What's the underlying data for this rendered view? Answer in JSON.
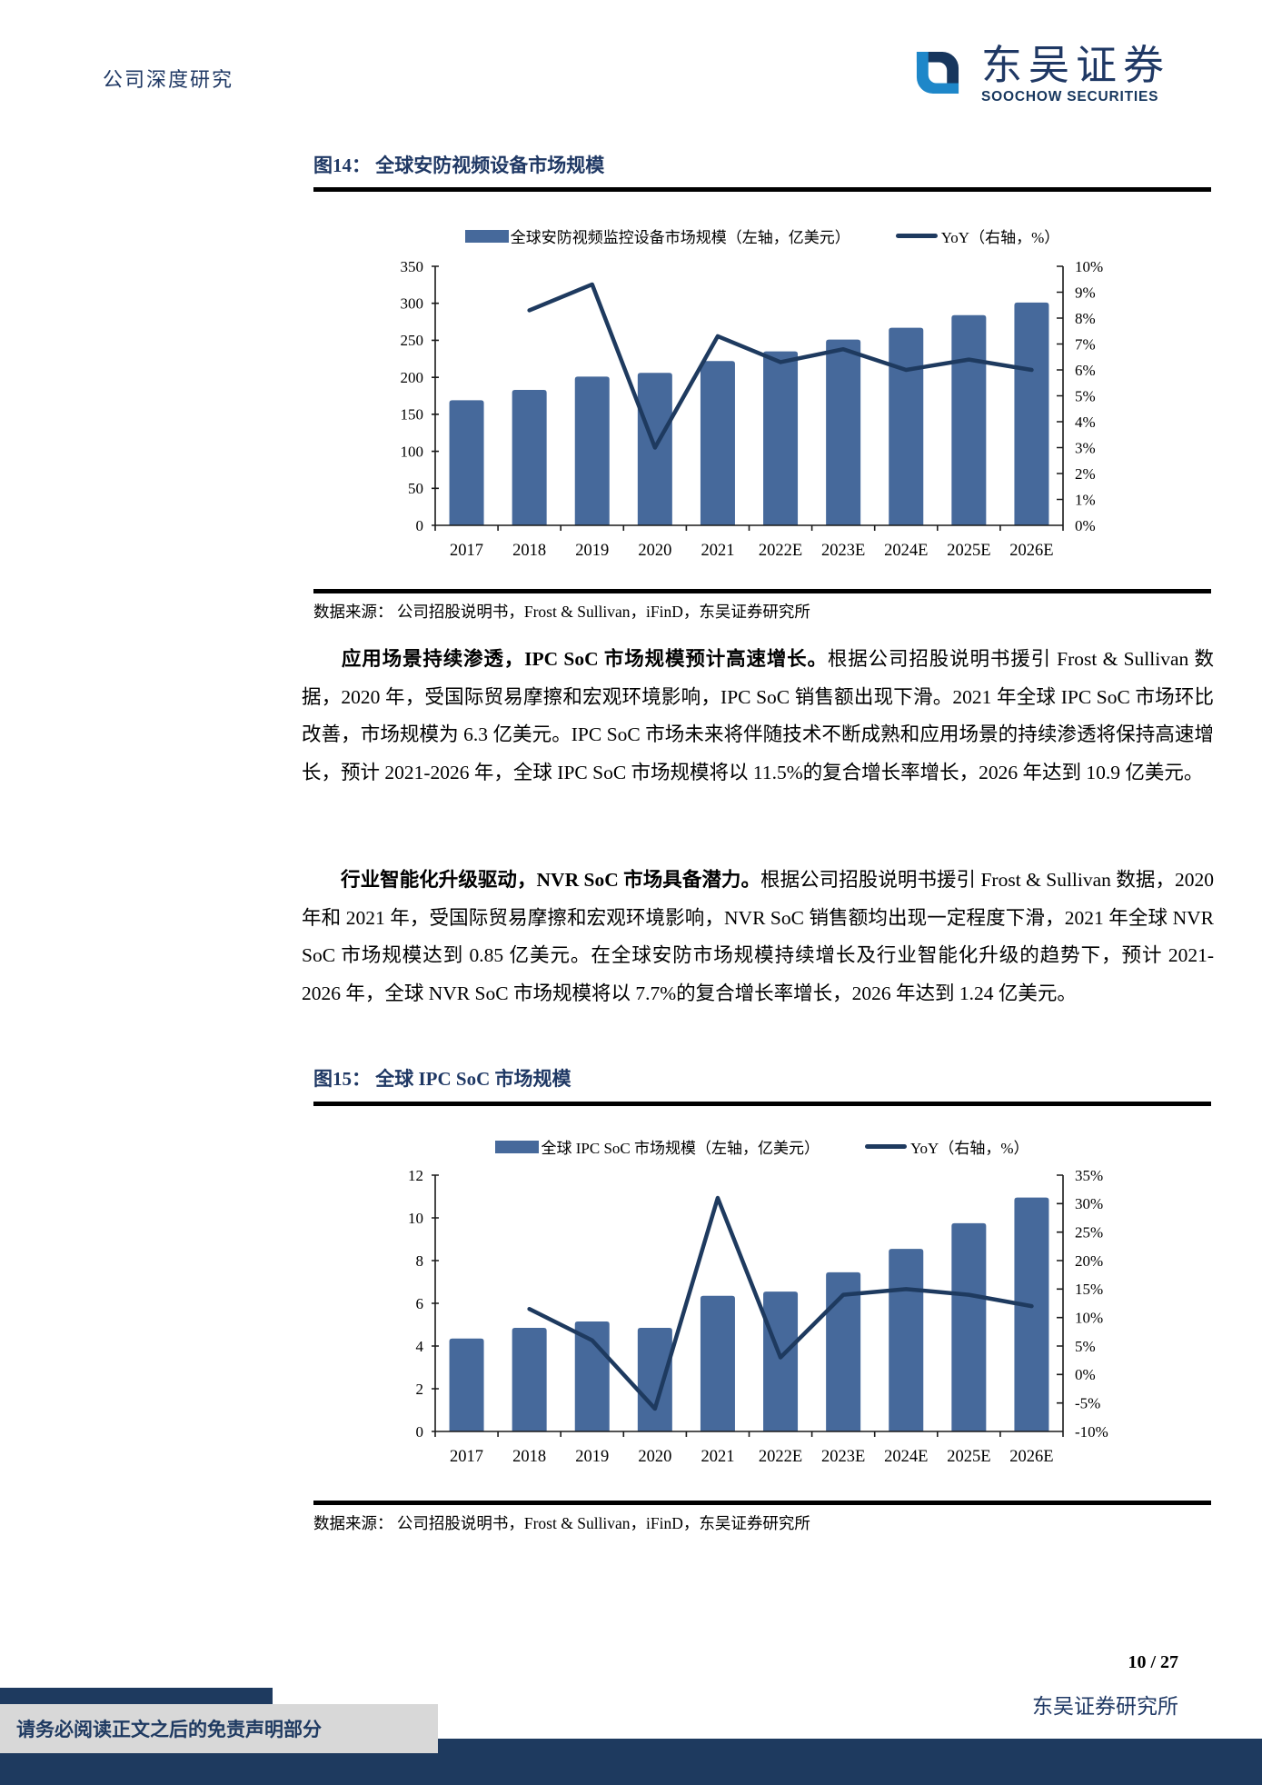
{
  "header": {
    "category": "公司深度研究",
    "brand_cn": "东吴证券",
    "brand_en": "SOOCHOW SECURITIES"
  },
  "colors": {
    "navy": "#1f3864",
    "bar": "#46699b",
    "line": "#1e3a5f",
    "axis": "#1a1a1a",
    "footer_bar": "#1e3a5f",
    "gray_box": "#d8d8d8"
  },
  "figure14": {
    "title": "图14： 全球安防视频设备市场规模",
    "source": "数据来源： 公司招股说明书，Frost & Sullivan，iFinD，东吴证券研究所"
  },
  "figure15": {
    "title": "图15： 全球 IPC SoC 市场规模",
    "source": "数据来源： 公司招股说明书，Frost & Sullivan，iFinD，东吴证券研究所"
  },
  "paragraphs": [
    {
      "lead": "应用场景持续渗透，IPC SoC 市场规模预计高速增长。",
      "body": "根据公司招股说明书援引 Frost & Sullivan 数据，2020 年，受国际贸易摩擦和宏观环境影响，IPC SoC 销售额出现下滑。2021 年全球 IPC SoC 市场环比改善，市场规模为 6.3 亿美元。IPC SoC 市场未来将伴随技术不断成熟和应用场景的持续渗透将保持高速增长，预计 2021-2026 年，全球 IPC SoC 市场规模将以 11.5%的复合增长率增长，2026 年达到 10.9 亿美元。"
    },
    {
      "lead": "行业智能化升级驱动，NVR SoC 市场具备潜力。",
      "body": "根据公司招股说明书援引 Frost & Sullivan 数据，2020 年和 2021 年，受国际贸易摩擦和宏观环境影响，NVR SoC 销售额均出现一定程度下滑，2021 年全球 NVR SoC 市场规模达到 0.85 亿美元。在全球安防市场规模持续增长及行业智能化升级的趋势下，预计 2021-2026 年，全球 NVR SoC 市场规模将以 7.7%的复合增长率增长，2026 年达到 1.24 亿美元。"
    }
  ],
  "footer": {
    "page": "10 / 27",
    "institute": "东吴证券研究所",
    "disclaimer": "请务必阅读正文之后的免责声明部分"
  },
  "chart_data": [
    {
      "type": "bar",
      "title": "图14：全球安防视频设备市场规模",
      "categories": [
        "2017",
        "2018",
        "2019",
        "2020",
        "2021",
        "2022E",
        "2023E",
        "2024E",
        "2025E",
        "2026E"
      ],
      "series": [
        {
          "name": "全球安防视频监控设备市场规模（左轴，亿美元）",
          "type": "bar",
          "axis": "left",
          "values": [
            169,
            183,
            201,
            206,
            222,
            235,
            251,
            267,
            284,
            301
          ]
        },
        {
          "name": "YoY（右轴，%）",
          "type": "line",
          "axis": "right",
          "values": [
            null,
            8.3,
            9.3,
            3.0,
            7.3,
            6.3,
            6.8,
            6.0,
            6.4,
            6.0
          ]
        }
      ],
      "left_axis": {
        "min": 0,
        "max": 350,
        "step": 50
      },
      "right_axis": {
        "min": 0,
        "max": 10,
        "step": 1,
        "suffix": "%"
      },
      "grid": false,
      "legend_position": "top"
    },
    {
      "type": "bar",
      "title": "图15：全球 IPC SoC 市场规模",
      "categories": [
        "2017",
        "2018",
        "2019",
        "2020",
        "2021",
        "2022E",
        "2023E",
        "2024E",
        "2025E",
        "2026E"
      ],
      "series": [
        {
          "name": "全球 IPC SoC 市场规模（左轴，亿美元）",
          "type": "bar",
          "axis": "left",
          "values": [
            4.35,
            4.85,
            5.15,
            4.85,
            6.35,
            6.55,
            7.45,
            8.55,
            9.75,
            10.95
          ]
        },
        {
          "name": "YoY（右轴，%）",
          "type": "line",
          "axis": "right",
          "values": [
            null,
            11.5,
            6.0,
            -6.0,
            31.0,
            3.0,
            14.0,
            15.0,
            14.0,
            12.0
          ]
        }
      ],
      "left_axis": {
        "min": 0,
        "max": 12,
        "step": 2
      },
      "right_axis": {
        "min": -10,
        "max": 35,
        "step": 5,
        "suffix": "%"
      },
      "grid": false,
      "legend_position": "top"
    }
  ]
}
